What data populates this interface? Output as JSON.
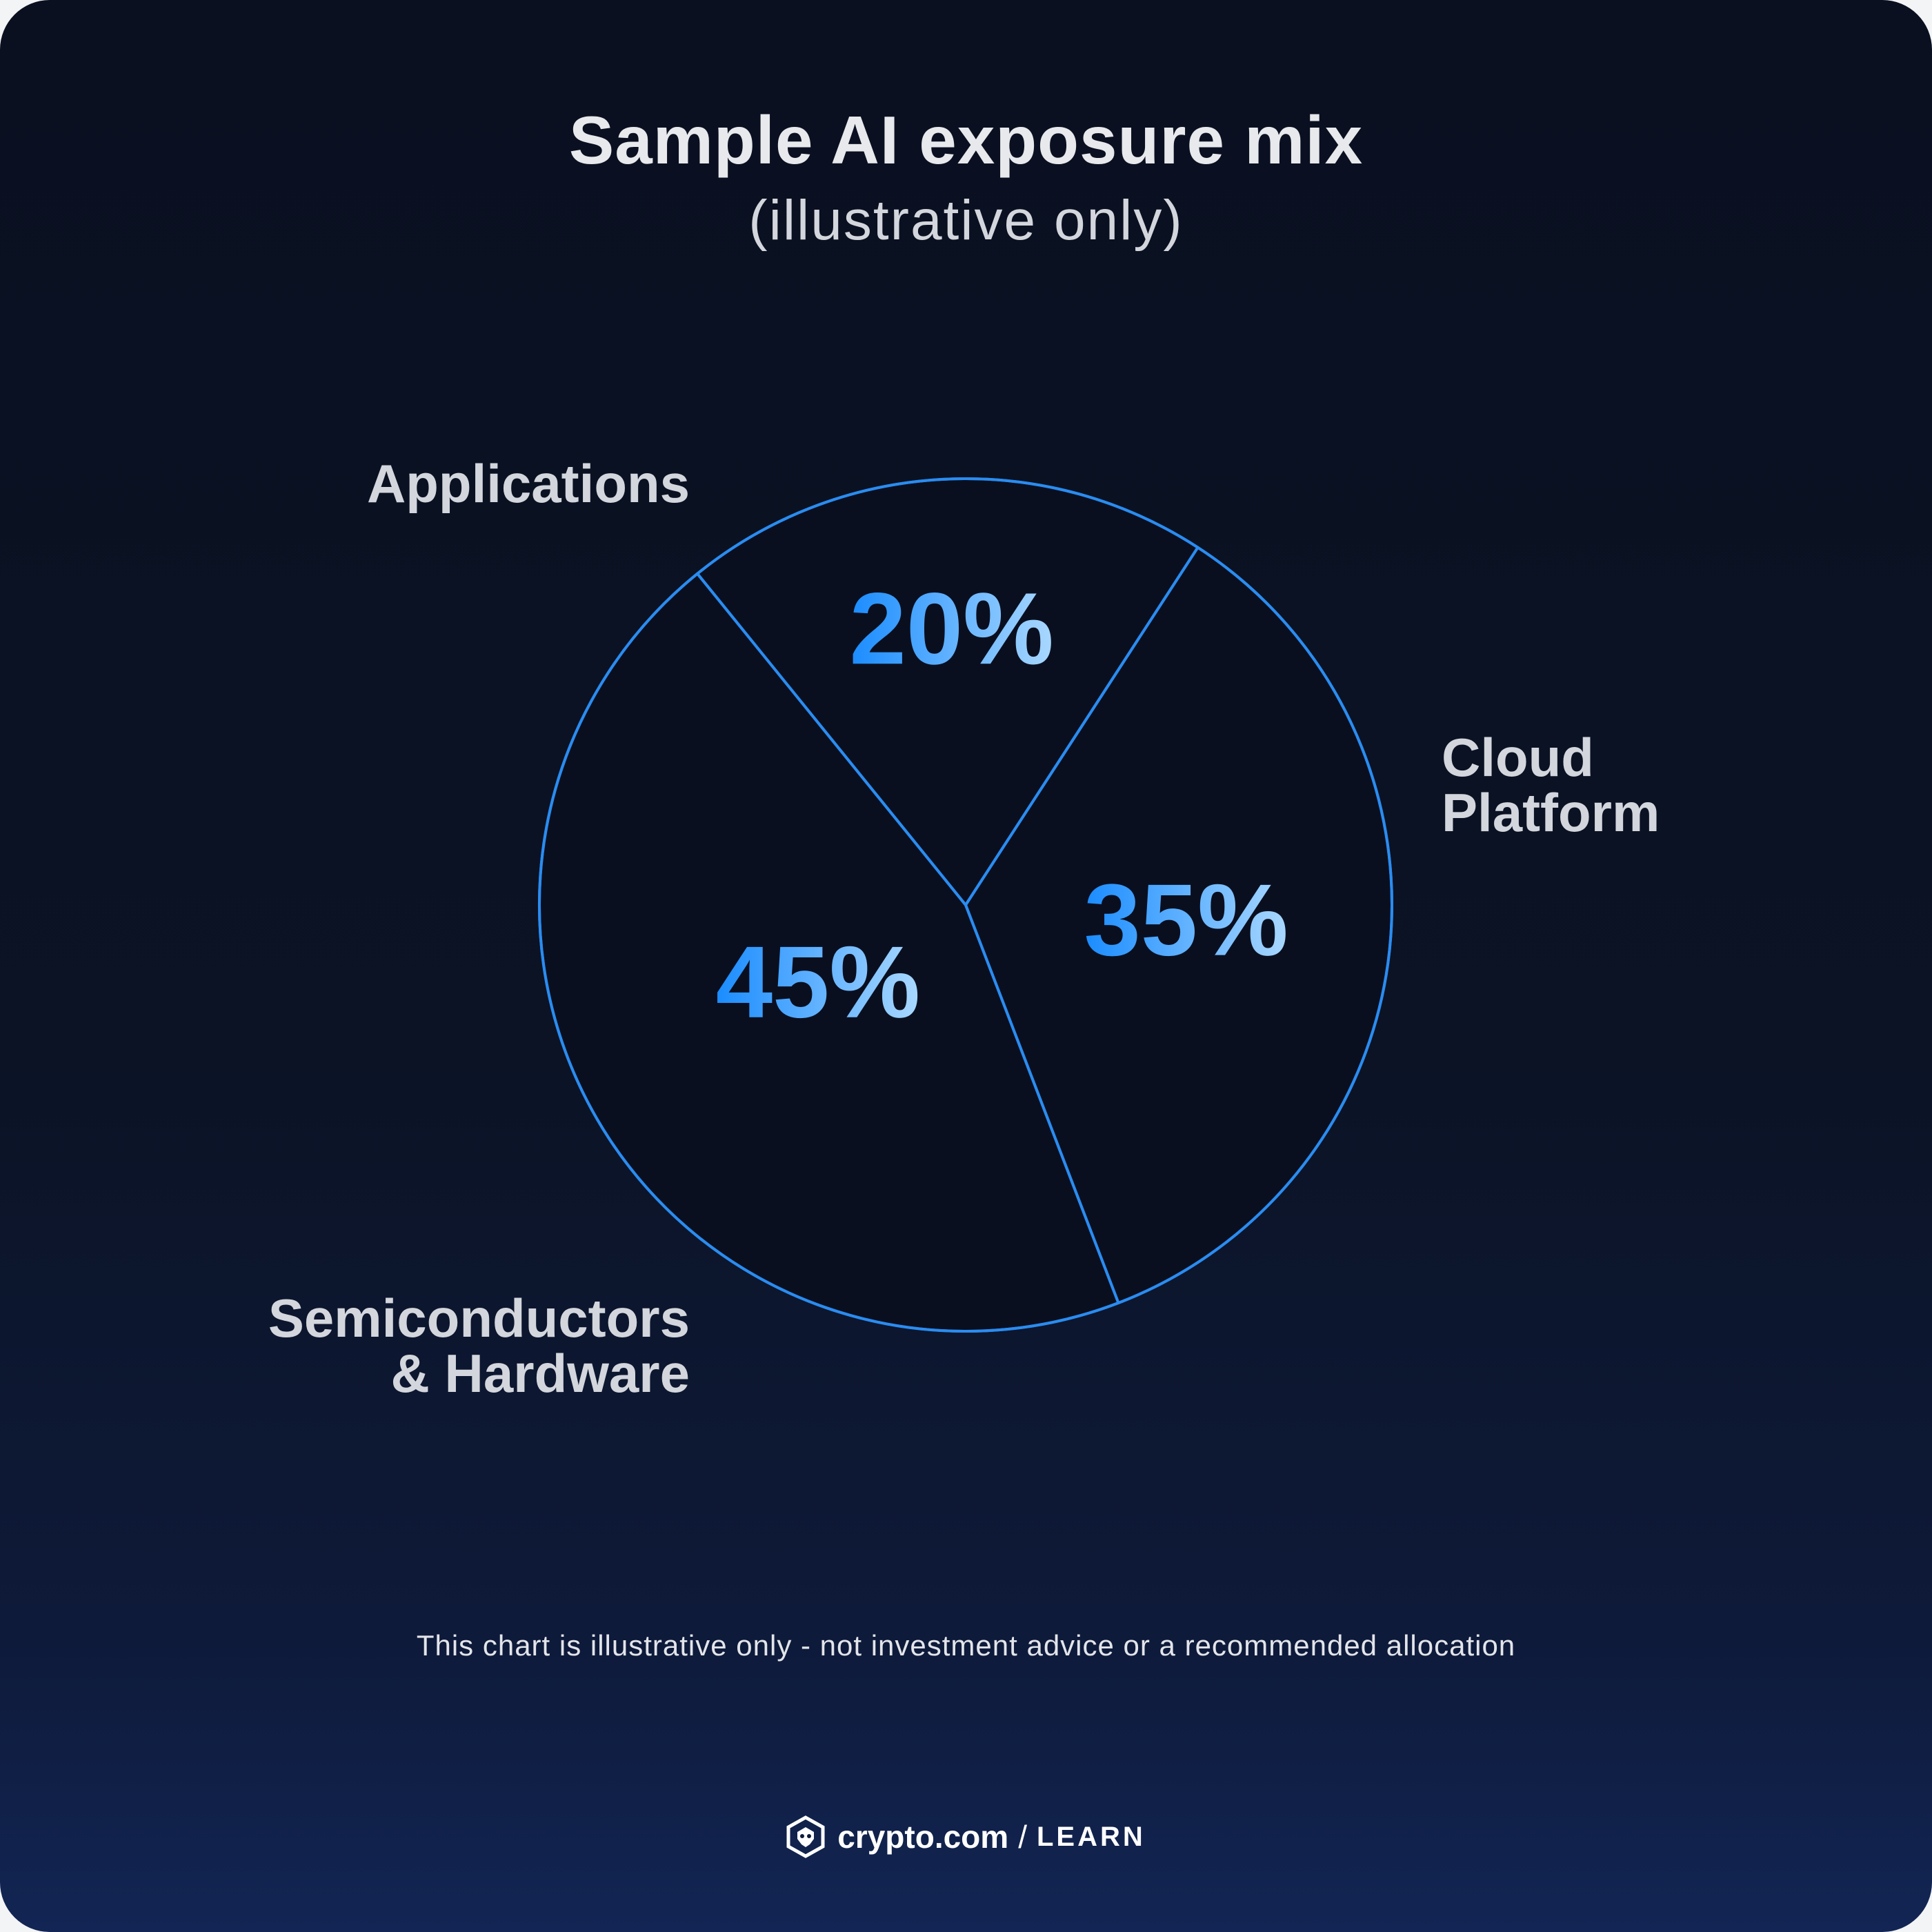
{
  "title": "Sample AI exposure mix",
  "subtitle": "(illustrative only)",
  "note": "This chart is illustrative only - not investment advice or a recommended allocation",
  "brand": {
    "name": "crypto.com",
    "separator": "/",
    "section": "LEARN",
    "logo_icon": "crypto-com-lion-shield-icon"
  },
  "colors": {
    "background": "#0b1325",
    "outline": "#2a8cf0",
    "label": "#d3d6dc",
    "value_gradient_start": "#1a8cff",
    "value_gradient_end": "#a9d8ff"
  },
  "chart_data": {
    "type": "pie",
    "title": "Sample AI exposure mix",
    "subtitle": "(illustrative only)",
    "slices": [
      {
        "label": "Applications",
        "value": 20,
        "value_label": "20%"
      },
      {
        "label": "Cloud\nPlatform",
        "value": 35,
        "value_label": "35%"
      },
      {
        "label": "Semiconductors\n& Hardware",
        "value": 45,
        "value_label": "45%"
      }
    ],
    "legend": "none"
  }
}
